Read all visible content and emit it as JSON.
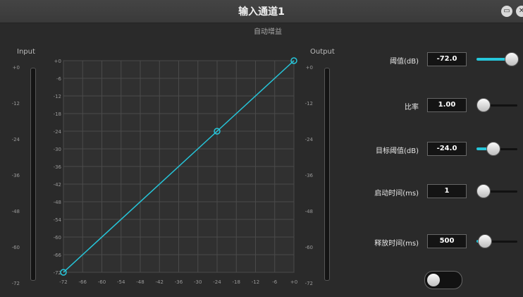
{
  "window": {
    "title": "输入通道1",
    "subtitle": "自动增益",
    "minimize_icon": "minimize-icon",
    "close_icon": "close-icon"
  },
  "meters": {
    "input_label": "Input",
    "output_label": "Output",
    "scale": [
      "+0",
      "-12",
      "-24",
      "-36",
      "-48",
      "-60",
      "-72"
    ]
  },
  "chart_data": {
    "type": "line",
    "title": "",
    "xlabel": "",
    "ylabel": "",
    "xlim": [
      -72,
      0
    ],
    "ylim": [
      -72,
      0
    ],
    "x_ticks": [
      "-72",
      "-66",
      "-60",
      "-54",
      "-48",
      "-42",
      "-36",
      "-30",
      "-24",
      "-18",
      "-12",
      "-6",
      "+0"
    ],
    "y_ticks": [
      "+0",
      "-6",
      "-12",
      "-18",
      "-24",
      "-30",
      "-36",
      "-42",
      "-48",
      "-54",
      "-60",
      "-66",
      "-72"
    ],
    "series": [
      {
        "x": [
          -72,
          -24,
          0
        ],
        "y": [
          -72,
          -24,
          0
        ],
        "color": "#26c6da"
      }
    ],
    "grid": true
  },
  "params": [
    {
      "label": "阈值(dB)",
      "value": "-72.0",
      "level": 1.0
    },
    {
      "label": "比率",
      "value": "1.00",
      "level": 0.0
    },
    {
      "label": "目标阈值(dB)",
      "value": "-24.0",
      "level": 0.35
    },
    {
      "label": "启动时间(ms)",
      "value": "1",
      "level": 0.0
    },
    {
      "label": "释放时间(ms)",
      "value": "500",
      "level": 0.04
    }
  ],
  "toggle": {
    "on": false
  },
  "colors": {
    "accent": "#26c6da"
  }
}
